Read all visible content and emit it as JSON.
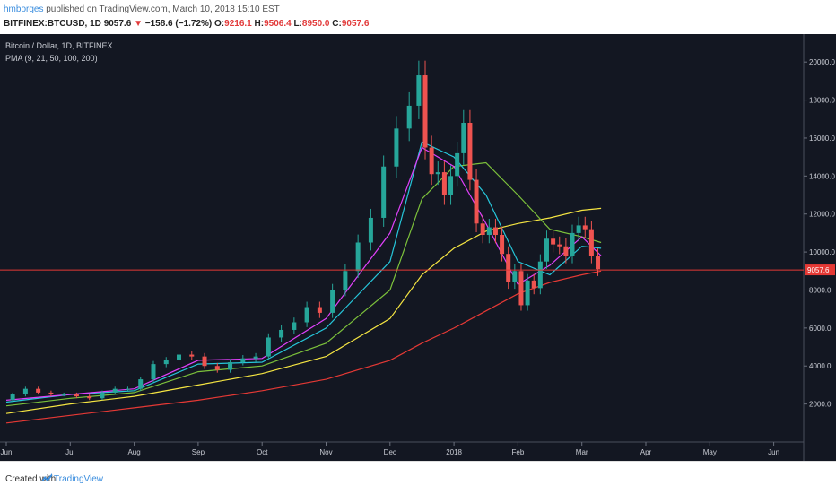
{
  "header": {
    "user": "hmborges",
    "published_text": "published on TradingView.com, March 10, 2018 15:10 EST",
    "symbol_tf": "BITFINEX:BTCUSD, 1D",
    "last": "9057.6",
    "arrow": "▼",
    "change": "−158.6 (−1.72%)",
    "open_label": "O:",
    "open": "9216.1",
    "high_label": "H:",
    "high": "9506.4",
    "low_label": "L:",
    "low": "8950.0",
    "close_label": "C:",
    "close": "9057.6"
  },
  "legend": {
    "title": "Bitcoin / Dollar, 1D, BITFINEX",
    "indicator": "PMA (9, 21, 50, 100, 200)"
  },
  "footer": {
    "created_with": "Created with",
    "brand": "TradingView"
  },
  "colors": {
    "background": "#131722",
    "up": "#26a69a",
    "down": "#ef5350",
    "ma9": "#e040fb",
    "ma21": "#26c6da",
    "ma50": "#7cc13b",
    "ma100": "#f5e542",
    "ma200": "#e53935",
    "price_line": "#e53935"
  },
  "chart_data": {
    "type": "line",
    "title": "Bitcoin / Dollar, 1D, BITFINEX",
    "x_ticks": [
      "Jun",
      "Jul",
      "Aug",
      "Sep",
      "Oct",
      "Nov",
      "Dec",
      "2018",
      "Feb",
      "Mar",
      "Apr",
      "May",
      "Jun"
    ],
    "y_ticks": [
      "2000.0",
      "4000.0",
      "6000.0",
      "8000.0",
      "10000.0",
      "12000.0",
      "14000.0",
      "16000.0",
      "18000.0",
      "20000.0"
    ],
    "y_range": [
      0,
      21000
    ],
    "x_domain_months": [
      0,
      13
    ],
    "current_price_label": "9057.6",
    "current_price": 9057.6,
    "price_path": {
      "months_since_jun_1_2017": [
        0,
        0.2,
        0.4,
        0.6,
        0.8,
        1.0,
        1.2,
        1.4,
        1.6,
        1.8,
        2.0,
        2.2,
        2.4,
        2.6,
        2.8,
        3.0,
        3.2,
        3.4,
        3.6,
        3.8,
        4.0,
        4.2,
        4.4,
        4.6,
        4.8,
        5.0,
        5.2,
        5.4,
        5.6,
        5.8,
        6.0,
        6.2,
        6.4,
        6.5,
        6.6,
        6.7,
        6.8,
        6.9,
        7.0,
        7.1,
        7.2,
        7.3,
        7.4,
        7.5,
        7.6,
        7.7,
        7.8,
        7.9,
        8.0,
        8.1,
        8.2,
        8.3,
        8.4,
        8.5,
        8.6,
        8.7,
        8.8,
        8.9,
        9.0,
        9.1,
        9.2,
        9.3
      ],
      "close": [
        2200,
        2500,
        2800,
        2600,
        2500,
        2500,
        2400,
        2300,
        2600,
        2800,
        2800,
        3300,
        4100,
        4300,
        4600,
        4500,
        4000,
        3800,
        4200,
        4400,
        4500,
        5500,
        5900,
        6300,
        7100,
        6800,
        8000,
        9000,
        10500,
        11800,
        14500,
        16500,
        17700,
        19300,
        15500,
        14100,
        14200,
        13000,
        14000,
        15200,
        16800,
        13800,
        11500,
        10900,
        11300,
        10900,
        9900,
        8400,
        9000,
        7200,
        8500,
        8100,
        9500,
        10700,
        10400,
        10300,
        9800,
        11000,
        11400,
        11200,
        9800,
        9100
      ]
    },
    "series": [
      {
        "name": "9",
        "months": [
          0,
          1,
          2,
          3,
          4,
          5,
          6,
          6.5,
          7,
          7.5,
          8,
          8.5,
          9,
          9.3
        ],
        "values": [
          2200,
          2500,
          2800,
          4300,
          4400,
          6500,
          11000,
          15500,
          14500,
          11500,
          8300,
          9300,
          10800,
          9800
        ]
      },
      {
        "name": "21",
        "months": [
          0,
          1,
          2,
          3,
          4,
          5,
          6,
          6.5,
          7,
          7.5,
          8,
          8.5,
          9,
          9.3
        ],
        "values": [
          2100,
          2500,
          2700,
          4100,
          4200,
          6000,
          9500,
          15800,
          15000,
          13000,
          9500,
          8800,
          10300,
          10200
        ]
      },
      {
        "name": "50",
        "months": [
          0,
          1,
          2,
          3,
          4,
          5,
          6,
          6.5,
          7,
          7.5,
          8,
          8.5,
          9,
          9.3
        ],
        "values": [
          1900,
          2300,
          2600,
          3700,
          4000,
          5200,
          8000,
          12800,
          14500,
          14700,
          13000,
          11200,
          10800,
          10500
        ]
      },
      {
        "name": "100",
        "months": [
          0,
          1,
          2,
          3,
          4,
          5,
          6,
          6.5,
          7,
          7.5,
          8,
          8.5,
          9,
          9.3
        ],
        "values": [
          1500,
          2000,
          2400,
          3000,
          3600,
          4500,
          6500,
          8800,
          10200,
          11100,
          11500,
          11800,
          12200,
          12300
        ]
      },
      {
        "name": "200",
        "months": [
          0,
          1,
          2,
          3,
          4,
          5,
          6,
          6.5,
          7,
          7.5,
          8,
          8.5,
          9,
          9.3
        ],
        "values": [
          1000,
          1400,
          1800,
          2200,
          2700,
          3300,
          4300,
          5200,
          6000,
          6900,
          7800,
          8400,
          8800,
          9000
        ]
      }
    ]
  }
}
